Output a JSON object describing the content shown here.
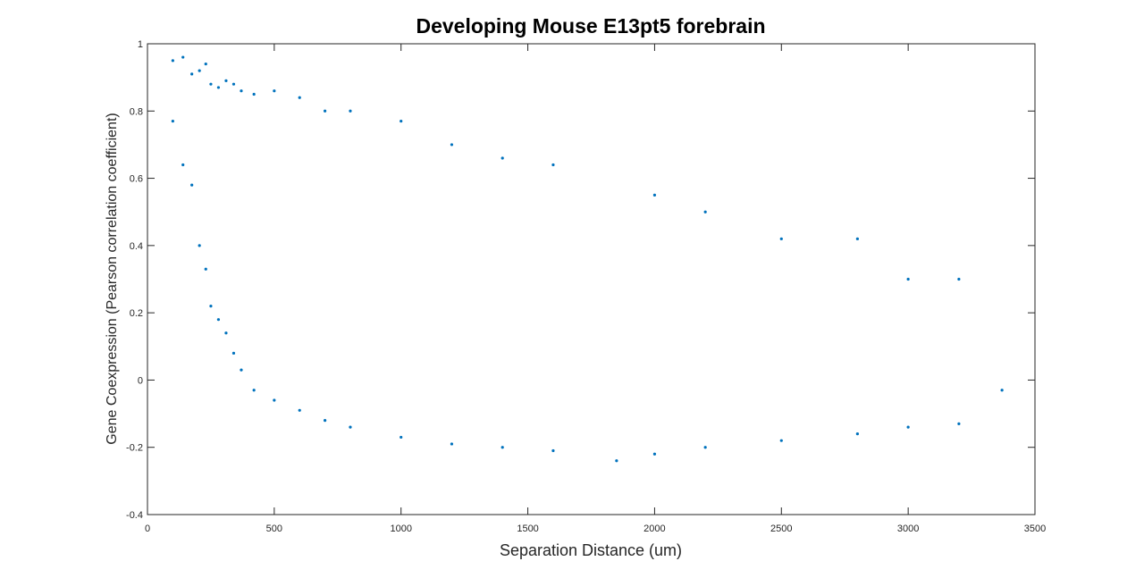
{
  "chart_data": {
    "type": "scatter",
    "title": "Developing Mouse E13pt5 forebrain",
    "xlabel": "Separation Distance (um)",
    "ylabel": "Gene Coexpression (Pearson correlation coefficient)",
    "xlim": [
      0,
      3500
    ],
    "ylim": [
      -0.4,
      1
    ],
    "xticks": [
      0,
      500,
      1000,
      1500,
      2000,
      2500,
      3000,
      3500
    ],
    "xtick_labels": [
      "0",
      "500",
      "1000",
      "1500",
      "2000",
      "2500",
      "3000",
      "3500"
    ],
    "yticks": [
      -0.4,
      -0.2,
      0,
      0.2,
      0.4,
      0.6,
      0.8,
      1
    ],
    "ytick_labels": [
      "-0.4",
      "-0.2",
      "0",
      "0.2",
      "0.4",
      "0.6",
      "0.8",
      "1"
    ],
    "grid": false,
    "marker_color": "#0072BD",
    "series": [
      {
        "values": [
          {
            "x": 100,
            "y": 0.95
          },
          {
            "x": 100,
            "y": 0.77
          },
          {
            "x": 140,
            "y": 0.96
          },
          {
            "x": 140,
            "y": 0.64
          },
          {
            "x": 175,
            "y": 0.91
          },
          {
            "x": 175,
            "y": 0.58
          },
          {
            "x": 205,
            "y": 0.92
          },
          {
            "x": 205,
            "y": 0.4
          },
          {
            "x": 230,
            "y": 0.94
          },
          {
            "x": 230,
            "y": 0.33
          },
          {
            "x": 250,
            "y": 0.88
          },
          {
            "x": 250,
            "y": 0.22
          },
          {
            "x": 280,
            "y": 0.87
          },
          {
            "x": 280,
            "y": 0.18
          },
          {
            "x": 310,
            "y": 0.89
          },
          {
            "x": 310,
            "y": 0.14
          },
          {
            "x": 340,
            "y": 0.88
          },
          {
            "x": 340,
            "y": 0.08
          },
          {
            "x": 370,
            "y": 0.86
          },
          {
            "x": 370,
            "y": 0.03
          },
          {
            "x": 420,
            "y": 0.85
          },
          {
            "x": 420,
            "y": -0.03
          },
          {
            "x": 500,
            "y": 0.86
          },
          {
            "x": 500,
            "y": -0.06
          },
          {
            "x": 600,
            "y": 0.84
          },
          {
            "x": 600,
            "y": -0.09
          },
          {
            "x": 700,
            "y": 0.8
          },
          {
            "x": 700,
            "y": -0.12
          },
          {
            "x": 800,
            "y": 0.8
          },
          {
            "x": 800,
            "y": -0.14
          },
          {
            "x": 1000,
            "y": 0.77
          },
          {
            "x": 1000,
            "y": -0.17
          },
          {
            "x": 1200,
            "y": 0.7
          },
          {
            "x": 1200,
            "y": -0.19
          },
          {
            "x": 1400,
            "y": 0.66
          },
          {
            "x": 1400,
            "y": -0.2
          },
          {
            "x": 1600,
            "y": 0.64
          },
          {
            "x": 1600,
            "y": -0.21
          },
          {
            "x": 1850,
            "y": -0.24
          },
          {
            "x": 2000,
            "y": 0.55
          },
          {
            "x": 2000,
            "y": -0.22
          },
          {
            "x": 2200,
            "y": 0.5
          },
          {
            "x": 2200,
            "y": -0.2
          },
          {
            "x": 2500,
            "y": 0.42
          },
          {
            "x": 2500,
            "y": -0.18
          },
          {
            "x": 2800,
            "y": 0.42
          },
          {
            "x": 2800,
            "y": -0.16
          },
          {
            "x": 3000,
            "y": 0.3
          },
          {
            "x": 3000,
            "y": -0.14
          },
          {
            "x": 3200,
            "y": 0.3
          },
          {
            "x": 3200,
            "y": -0.13
          },
          {
            "x": 3370,
            "y": -0.03
          }
        ]
      }
    ]
  }
}
